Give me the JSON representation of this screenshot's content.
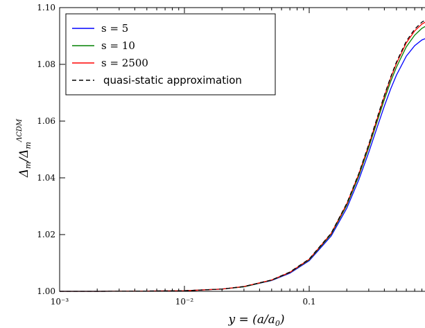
{
  "chart_data": {
    "type": "line",
    "xscale": "log",
    "xlim": [
      0.001,
      1
    ],
    "ylim": [
      1.0,
      1.1
    ],
    "xlabel": "y = (a/a₀)",
    "ylabel": "Δm/ΔmΛCDM",
    "xtick_labels": [
      "10⁻³",
      "10⁻²",
      "0.1",
      "1"
    ],
    "ytick_values": [
      1.0,
      1.02,
      1.04,
      1.06,
      1.08,
      1.1
    ],
    "ytick_labels": [
      "1.00",
      "1.02",
      "1.04",
      "1.06",
      "1.08",
      "1.10"
    ],
    "legend_position": "top-left",
    "x": [
      0.001,
      0.002,
      0.005,
      0.01,
      0.02,
      0.03,
      0.05,
      0.07,
      0.1,
      0.15,
      0.2,
      0.25,
      0.3,
      0.35,
      0.4,
      0.45,
      0.5,
      0.6,
      0.7,
      0.8,
      0.9,
      1.0
    ],
    "series": [
      {
        "name": "s = 5",
        "color": "#0000ff",
        "dash": "solid",
        "values": [
          1.0,
          1.0,
          1.0001,
          1.0002,
          1.0008,
          1.0016,
          1.0038,
          1.0064,
          1.0108,
          1.0195,
          1.0293,
          1.0394,
          1.049,
          1.0578,
          1.0653,
          1.0714,
          1.0762,
          1.0829,
          1.0866,
          1.0886,
          1.0895,
          1.0898
        ]
      },
      {
        "name": "s = 10",
        "color": "#008000",
        "dash": "solid",
        "values": [
          1.0,
          1.0,
          1.0001,
          1.0002,
          1.0008,
          1.0016,
          1.0039,
          1.0066,
          1.0111,
          1.0201,
          1.0303,
          1.0407,
          1.0507,
          1.0598,
          1.0676,
          1.074,
          1.079,
          1.0862,
          1.0903,
          1.0927,
          1.094,
          1.0945
        ]
      },
      {
        "name": "s = 2500",
        "color": "#ff0000",
        "dash": "solid",
        "values": [
          1.0,
          1.0,
          1.0001,
          1.0002,
          1.0008,
          1.0017,
          1.004,
          1.0067,
          1.0113,
          1.0204,
          1.0308,
          1.0414,
          1.0515,
          1.0607,
          1.0687,
          1.0752,
          1.0803,
          1.0876,
          1.0918,
          1.0942,
          1.0955,
          1.0961
        ]
      },
      {
        "name": "quasi-static approximation",
        "color": "#000000",
        "dash": "dashed",
        "values": [
          1.0,
          1.0,
          1.0001,
          1.0002,
          1.0008,
          1.0017,
          1.004,
          1.0068,
          1.0114,
          1.0205,
          1.031,
          1.0416,
          1.0518,
          1.0611,
          1.0691,
          1.0756,
          1.0808,
          1.0882,
          1.0924,
          1.0949,
          1.0962,
          1.0968
        ]
      }
    ]
  }
}
